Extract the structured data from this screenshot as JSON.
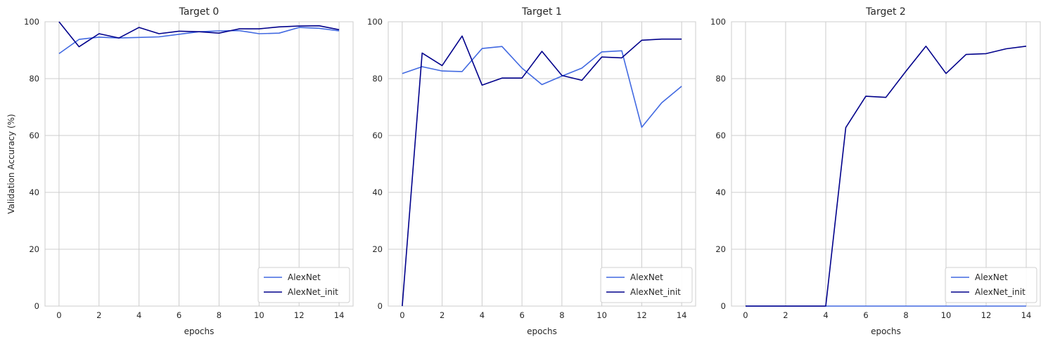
{
  "chart_data": [
    {
      "type": "line",
      "title": "Target 0",
      "xlabel": "epochs",
      "ylabel": "Validation Accuracy (%)",
      "x": [
        0,
        1,
        2,
        3,
        4,
        5,
        6,
        7,
        8,
        9,
        10,
        11,
        12,
        13,
        14
      ],
      "xlim": [
        -0.7,
        14.7
      ],
      "ylim": [
        0,
        100
      ],
      "xticks": [
        0,
        2,
        4,
        6,
        8,
        10,
        12,
        14
      ],
      "yticks": [
        0,
        20,
        40,
        60,
        80,
        100
      ],
      "grid": true,
      "legend": "lower right",
      "series": [
        {
          "name": "AlexNet",
          "color": "#4169e1",
          "values": [
            88.8,
            93.8,
            94.6,
            94.3,
            94.5,
            94.7,
            95.6,
            96.5,
            96.8,
            96.9,
            95.8,
            96.0,
            98.0,
            97.7,
            96.8
          ]
        },
        {
          "name": "AlexNet_init",
          "color": "#00008b",
          "values": [
            100.0,
            91.2,
            95.8,
            94.3,
            98.0,
            95.8,
            96.7,
            96.5,
            96.0,
            97.5,
            97.5,
            98.2,
            98.5,
            98.6,
            97.2
          ]
        }
      ]
    },
    {
      "type": "line",
      "title": "Target 1",
      "xlabel": "epochs",
      "ylabel": "",
      "x": [
        0,
        1,
        2,
        3,
        4,
        5,
        6,
        7,
        8,
        9,
        10,
        11,
        12,
        13,
        14
      ],
      "xlim": [
        -0.7,
        14.7
      ],
      "ylim": [
        0,
        100
      ],
      "xticks": [
        0,
        2,
        4,
        6,
        8,
        10,
        12,
        14
      ],
      "yticks": [
        0,
        20,
        40,
        60,
        80,
        100
      ],
      "grid": true,
      "legend": "lower right",
      "series": [
        {
          "name": "AlexNet",
          "color": "#4169e1",
          "values": [
            81.8,
            84.2,
            82.7,
            82.5,
            90.6,
            91.3,
            83.7,
            77.9,
            80.9,
            83.7,
            89.4,
            89.8,
            62.9,
            71.5,
            77.3
          ]
        },
        {
          "name": "AlexNet_init",
          "color": "#00008b",
          "values": [
            0.0,
            89.0,
            84.6,
            95.0,
            77.7,
            80.2,
            80.2,
            89.6,
            81.1,
            79.4,
            87.6,
            87.3,
            93.5,
            93.9,
            93.9
          ]
        }
      ]
    },
    {
      "type": "line",
      "title": "Target 2",
      "xlabel": "epochs",
      "ylabel": "",
      "x": [
        0,
        1,
        2,
        3,
        4,
        5,
        6,
        7,
        8,
        9,
        10,
        11,
        12,
        13,
        14
      ],
      "xlim": [
        -0.7,
        14.7
      ],
      "ylim": [
        0,
        100
      ],
      "xticks": [
        0,
        2,
        4,
        6,
        8,
        10,
        12,
        14
      ],
      "yticks": [
        0,
        20,
        40,
        60,
        80,
        100
      ],
      "grid": true,
      "legend": "lower right",
      "series": [
        {
          "name": "AlexNet",
          "color": "#4169e1",
          "values": [
            0,
            0,
            0,
            0,
            0,
            0,
            0,
            0,
            0,
            0,
            0,
            0,
            0,
            0,
            0
          ]
        },
        {
          "name": "AlexNet_init",
          "color": "#00008b",
          "values": [
            0.0,
            0.0,
            0.0,
            0.0,
            0.0,
            62.8,
            73.8,
            73.4,
            82.6,
            91.4,
            81.8,
            88.5,
            88.8,
            90.5,
            91.4
          ]
        }
      ]
    }
  ]
}
